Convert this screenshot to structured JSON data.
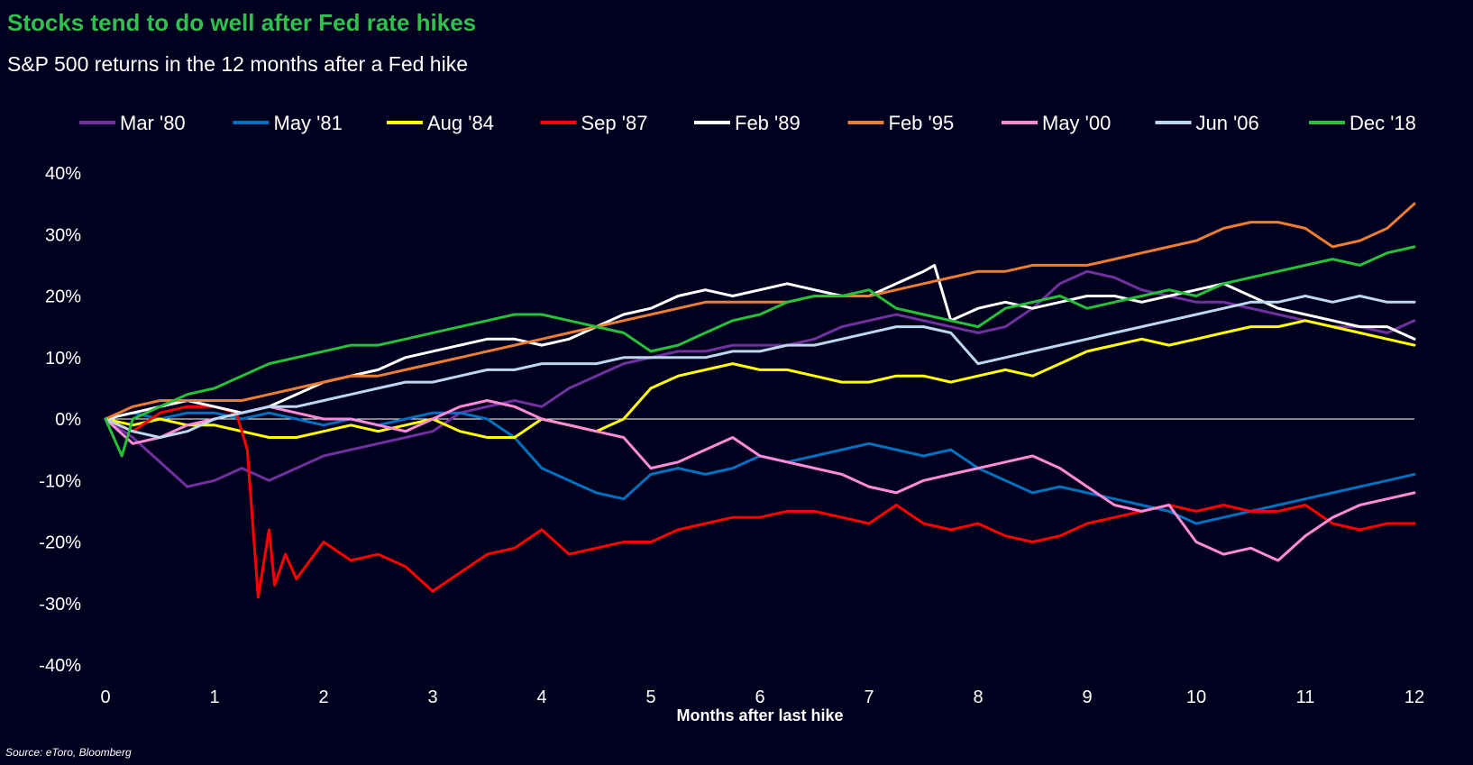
{
  "header": {
    "title": "Stocks tend to do well after Fed rate hikes",
    "subtitle": "S&P 500 returns in the 12 months after a Fed hike"
  },
  "footer": {
    "source": "Source: eToro, Bloomberg"
  },
  "colors": {
    "background": "#02001f",
    "title": "#2fc14b",
    "text": "#ffffff",
    "zero_line": "#ffffff"
  },
  "chart_data": {
    "type": "line",
    "xlabel": "Months after last hike",
    "ylabel": "",
    "xlim": [
      0,
      12
    ],
    "ylim": [
      -40,
      40
    ],
    "x_ticks": [
      "0",
      "1",
      "2",
      "3",
      "4",
      "5",
      "6",
      "7",
      "8",
      "9",
      "10",
      "11",
      "12"
    ],
    "y_ticks": [
      "40%",
      "30%",
      "20%",
      "10%",
      "0%",
      "-10%",
      "-20%",
      "-30%",
      "-40%"
    ],
    "y_tick_values": [
      40,
      30,
      20,
      10,
      0,
      -10,
      -20,
      -30,
      -40
    ],
    "grid": false,
    "zero_line": true,
    "legend": "top",
    "series": [
      {
        "name": "Mar '80",
        "color": "#7030a0",
        "x": [
          0,
          0.25,
          0.5,
          0.75,
          1,
          1.25,
          1.5,
          1.75,
          2,
          2.25,
          2.5,
          2.75,
          3,
          3.25,
          3.5,
          3.75,
          4,
          4.25,
          4.5,
          4.75,
          5,
          5.25,
          5.5,
          5.75,
          6,
          6.25,
          6.5,
          6.75,
          7,
          7.25,
          7.5,
          7.75,
          8,
          8.25,
          8.5,
          8.75,
          9,
          9.25,
          9.5,
          9.75,
          10,
          10.25,
          10.5,
          10.75,
          11,
          11.25,
          11.5,
          11.75,
          12
        ],
        "values": [
          0,
          -3,
          -7,
          -11,
          -10,
          -8,
          -10,
          -8,
          -6,
          -5,
          -4,
          -3,
          -2,
          1,
          2,
          3,
          2,
          5,
          7,
          9,
          10,
          11,
          11,
          12,
          12,
          12,
          13,
          15,
          16,
          17,
          16,
          15,
          14,
          15,
          18,
          22,
          24,
          23,
          21,
          20,
          19,
          19,
          18,
          17,
          16,
          15,
          15,
          14,
          16
        ]
      },
      {
        "name": "May '81",
        "color": "#0070c0",
        "x": [
          0,
          0.25,
          0.5,
          0.75,
          1,
          1.25,
          1.5,
          1.75,
          2,
          2.25,
          2.5,
          2.75,
          3,
          3.25,
          3.5,
          3.75,
          4,
          4.25,
          4.5,
          4.75,
          5,
          5.25,
          5.5,
          5.75,
          6,
          6.25,
          6.5,
          6.75,
          7,
          7.25,
          7.5,
          7.75,
          8,
          8.25,
          8.5,
          8.75,
          9,
          9.25,
          9.5,
          9.75,
          10,
          10.25,
          10.5,
          10.75,
          11,
          11.25,
          11.5,
          11.75,
          12
        ],
        "values": [
          0,
          1,
          0,
          1,
          1,
          0,
          1,
          0,
          -1,
          0,
          -1,
          0,
          1,
          1,
          0,
          -3,
          -8,
          -10,
          -12,
          -13,
          -9,
          -8,
          -9,
          -8,
          -6,
          -7,
          -6,
          -5,
          -4,
          -5,
          -6,
          -5,
          -8,
          -10,
          -12,
          -11,
          -12,
          -13,
          -14,
          -15,
          -17,
          -16,
          -15,
          -14,
          -13,
          -12,
          -11,
          -10,
          -9
        ]
      },
      {
        "name": "Aug '84",
        "color": "#ffff00",
        "x": [
          0,
          0.25,
          0.5,
          0.75,
          1,
          1.25,
          1.5,
          1.75,
          2,
          2.25,
          2.5,
          2.75,
          3,
          3.25,
          3.5,
          3.75,
          4,
          4.25,
          4.5,
          4.75,
          5,
          5.25,
          5.5,
          5.75,
          6,
          6.25,
          6.5,
          6.75,
          7,
          7.25,
          7.5,
          7.75,
          8,
          8.25,
          8.5,
          8.75,
          9,
          9.25,
          9.5,
          9.75,
          10,
          10.25,
          10.5,
          10.75,
          11,
          11.25,
          11.5,
          11.75,
          12
        ],
        "values": [
          0,
          -1,
          0,
          -1,
          -1,
          -2,
          -3,
          -3,
          -2,
          -1,
          -2,
          -1,
          0,
          -2,
          -3,
          -3,
          0,
          -1,
          -2,
          0,
          5,
          7,
          8,
          9,
          8,
          8,
          7,
          6,
          6,
          7,
          7,
          6,
          7,
          8,
          7,
          9,
          11,
          12,
          13,
          12,
          13,
          14,
          15,
          15,
          16,
          15,
          14,
          13,
          12
        ]
      },
      {
        "name": "Sep '87",
        "color": "#ff0000",
        "x": [
          0,
          0.25,
          0.5,
          0.75,
          1,
          1.2,
          1.3,
          1.4,
          1.5,
          1.55,
          1.65,
          1.75,
          2,
          2.25,
          2.5,
          2.75,
          3,
          3.25,
          3.5,
          3.75,
          4,
          4.25,
          4.5,
          4.75,
          5,
          5.25,
          5.5,
          5.75,
          6,
          6.25,
          6.5,
          6.75,
          7,
          7.25,
          7.5,
          7.75,
          8,
          8.25,
          8.5,
          8.75,
          9,
          9.25,
          9.5,
          9.75,
          10,
          10.25,
          10.5,
          10.75,
          11,
          11.25,
          11.5,
          11.75,
          12
        ],
        "values": [
          0,
          -2,
          1,
          2,
          2,
          1,
          -5,
          -29,
          -18,
          -27,
          -22,
          -26,
          -20,
          -23,
          -22,
          -24,
          -28,
          -25,
          -22,
          -21,
          -18,
          -22,
          -21,
          -20,
          -20,
          -18,
          -17,
          -16,
          -16,
          -15,
          -15,
          -16,
          -17,
          -14,
          -17,
          -18,
          -17,
          -19,
          -20,
          -19,
          -17,
          -16,
          -15,
          -14,
          -15,
          -14,
          -15,
          -15,
          -14,
          -17,
          -18,
          -17,
          -17
        ]
      },
      {
        "name": "Feb '89",
        "color": "#ffffff",
        "x": [
          0,
          0.25,
          0.5,
          0.75,
          1,
          1.25,
          1.5,
          1.75,
          2,
          2.25,
          2.5,
          2.75,
          3,
          3.25,
          3.5,
          3.75,
          4,
          4.25,
          4.5,
          4.75,
          5,
          5.25,
          5.5,
          5.75,
          6,
          6.25,
          6.5,
          6.75,
          7,
          7.25,
          7.5,
          7.6,
          7.75,
          8,
          8.25,
          8.5,
          8.75,
          9,
          9.25,
          9.5,
          9.75,
          10,
          10.25,
          10.5,
          10.75,
          11,
          11.25,
          11.5,
          11.75,
          12
        ],
        "values": [
          0,
          1,
          2,
          3,
          2,
          1,
          2,
          4,
          6,
          7,
          8,
          10,
          11,
          12,
          13,
          13,
          12,
          13,
          15,
          17,
          18,
          20,
          21,
          20,
          21,
          22,
          21,
          20,
          20,
          22,
          24,
          25,
          16,
          18,
          19,
          18,
          19,
          20,
          20,
          19,
          20,
          21,
          22,
          20,
          18,
          17,
          16,
          15,
          15,
          13
        ]
      },
      {
        "name": "Feb '95",
        "color": "#ed7d31",
        "x": [
          0,
          0.25,
          0.5,
          0.75,
          1,
          1.25,
          1.5,
          1.75,
          2,
          2.25,
          2.5,
          2.75,
          3,
          3.25,
          3.5,
          3.75,
          4,
          4.25,
          4.5,
          4.75,
          5,
          5.25,
          5.5,
          5.75,
          6,
          6.25,
          6.5,
          6.75,
          7,
          7.25,
          7.5,
          7.75,
          8,
          8.25,
          8.5,
          8.75,
          9,
          9.25,
          9.5,
          9.75,
          10,
          10.25,
          10.5,
          10.75,
          11,
          11.25,
          11.5,
          11.75,
          12
        ],
        "values": [
          0,
          2,
          3,
          3,
          3,
          3,
          4,
          5,
          6,
          7,
          7,
          8,
          9,
          10,
          11,
          12,
          13,
          14,
          15,
          16,
          17,
          18,
          19,
          19,
          19,
          19,
          20,
          20,
          20,
          21,
          22,
          23,
          24,
          24,
          25,
          25,
          25,
          26,
          27,
          28,
          29,
          31,
          32,
          32,
          31,
          28,
          29,
          31,
          35
        ]
      },
      {
        "name": "May '00",
        "color": "#ff8ad8",
        "x": [
          0,
          0.25,
          0.5,
          0.75,
          1,
          1.25,
          1.5,
          1.75,
          2,
          2.25,
          2.5,
          2.75,
          3,
          3.25,
          3.5,
          3.75,
          4,
          4.25,
          4.5,
          4.75,
          5,
          5.25,
          5.5,
          5.75,
          6,
          6.25,
          6.5,
          6.75,
          7,
          7.25,
          7.5,
          7.75,
          8,
          8.25,
          8.5,
          8.75,
          9,
          9.25,
          9.5,
          9.75,
          10,
          10.25,
          10.5,
          10.75,
          11,
          11.25,
          11.5,
          11.75,
          12
        ],
        "values": [
          0,
          -4,
          -3,
          -1,
          0,
          1,
          2,
          1,
          0,
          0,
          -1,
          -2,
          0,
          2,
          3,
          2,
          0,
          -1,
          -2,
          -3,
          -8,
          -7,
          -5,
          -3,
          -6,
          -7,
          -8,
          -9,
          -11,
          -12,
          -10,
          -9,
          -8,
          -7,
          -6,
          -8,
          -11,
          -14,
          -15,
          -14,
          -20,
          -22,
          -21,
          -23,
          -19,
          -16,
          -14,
          -13,
          -12
        ]
      },
      {
        "name": "Jun '06",
        "color": "#bdd7ee",
        "x": [
          0,
          0.25,
          0.5,
          0.75,
          1,
          1.25,
          1.5,
          1.75,
          2,
          2.25,
          2.5,
          2.75,
          3,
          3.25,
          3.5,
          3.75,
          4,
          4.25,
          4.5,
          4.75,
          5,
          5.25,
          5.5,
          5.75,
          6,
          6.25,
          6.5,
          6.75,
          7,
          7.25,
          7.5,
          7.75,
          8,
          8.25,
          8.5,
          8.75,
          9,
          9.25,
          9.5,
          9.75,
          10,
          10.25,
          10.5,
          10.75,
          11,
          11.25,
          11.5,
          11.75,
          12
        ],
        "values": [
          0,
          -2,
          -3,
          -2,
          0,
          1,
          2,
          2,
          3,
          4,
          5,
          6,
          6,
          7,
          8,
          8,
          9,
          9,
          9,
          10,
          10,
          10,
          10,
          11,
          11,
          12,
          12,
          13,
          14,
          15,
          15,
          14,
          9,
          10,
          11,
          12,
          13,
          14,
          15,
          16,
          17,
          18,
          19,
          19,
          20,
          19,
          20,
          19,
          19
        ]
      },
      {
        "name": "Dec '18",
        "color": "#27c03a",
        "x": [
          0,
          0.15,
          0.25,
          0.5,
          0.75,
          1,
          1.25,
          1.5,
          1.75,
          2,
          2.25,
          2.5,
          2.75,
          3,
          3.25,
          3.5,
          3.75,
          4,
          4.25,
          4.5,
          4.75,
          5,
          5.25,
          5.5,
          5.75,
          6,
          6.25,
          6.5,
          6.75,
          7,
          7.25,
          7.5,
          7.75,
          8,
          8.25,
          8.5,
          8.75,
          9,
          9.25,
          9.5,
          9.75,
          10,
          10.25,
          10.5,
          10.75,
          11,
          11.25,
          11.5,
          11.75,
          12
        ],
        "values": [
          0,
          -6,
          0,
          2,
          4,
          5,
          7,
          9,
          10,
          11,
          12,
          12,
          13,
          14,
          15,
          16,
          17,
          17,
          16,
          15,
          14,
          11,
          12,
          14,
          16,
          17,
          19,
          20,
          20,
          21,
          18,
          17,
          16,
          15,
          18,
          19,
          20,
          18,
          19,
          20,
          21,
          20,
          22,
          23,
          24,
          25,
          26,
          25,
          27,
          28
        ]
      }
    ]
  }
}
